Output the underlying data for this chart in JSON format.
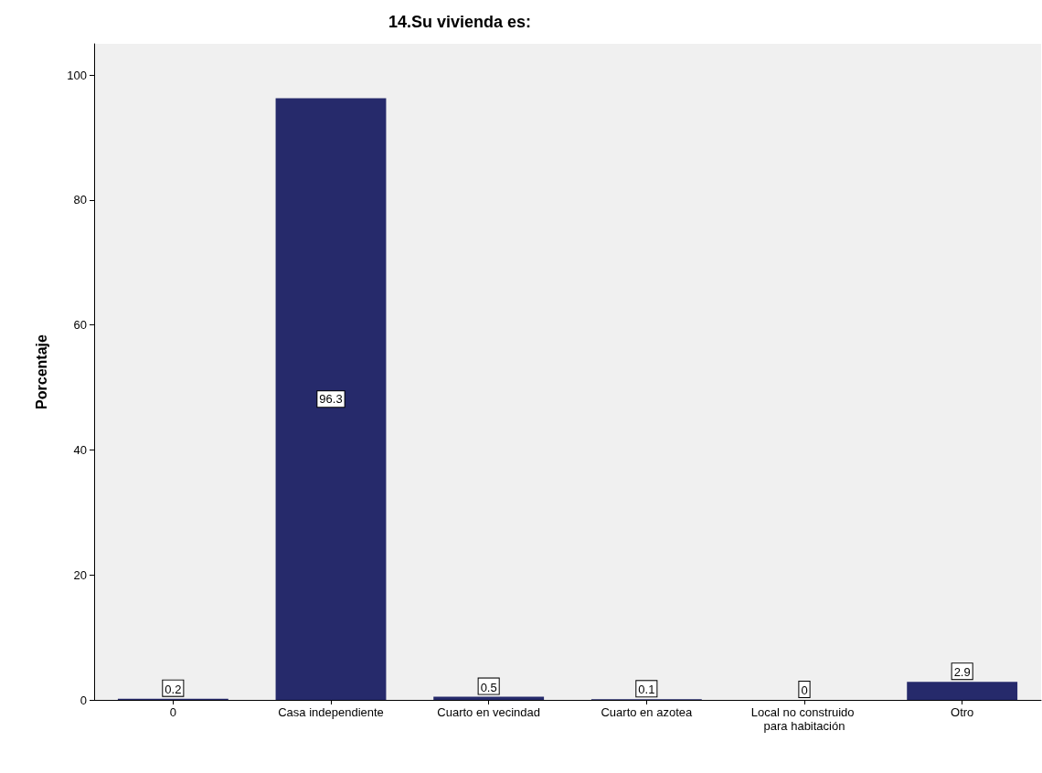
{
  "chart_data": {
    "type": "bar",
    "title": "14.Su vivienda es:",
    "ylabel": "Porcentaje",
    "categories": [
      "0",
      "Casa independiente",
      "Cuarto en vecindad",
      "Cuarto en azotea",
      "Local no construido para habitación",
      "Otro"
    ],
    "values": [
      0.2,
      96.3,
      0.5,
      0.1,
      0,
      2.9
    ],
    "color": "#262a6b",
    "ylim": [
      0,
      105
    ],
    "yticks": [
      0,
      20,
      40,
      60,
      80,
      100
    ],
    "data_labels": true
  }
}
